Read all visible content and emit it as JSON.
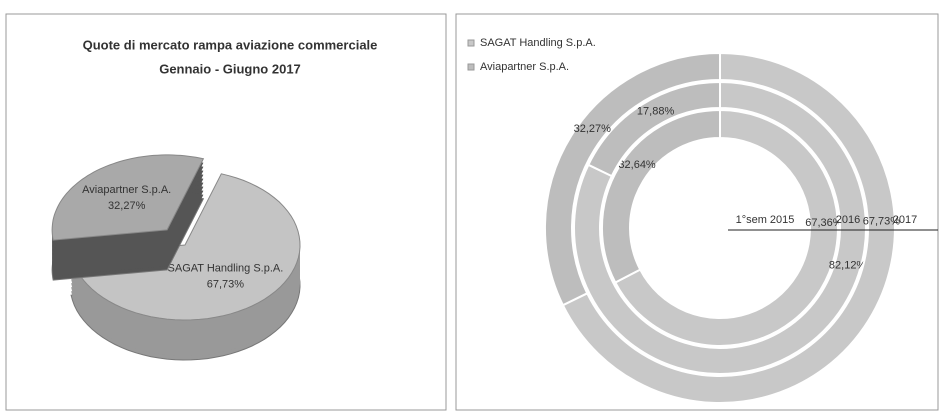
{
  "chart_data": [
    {
      "type": "pie3d",
      "title": "Quote di mercato rampa aviazione commerciale",
      "subtitle": "Gennaio - Giugno 2017",
      "categories": [
        "SAGAT Handling S.p.A.",
        "Aviapartner S.p.A."
      ],
      "values": [
        67.73,
        32.27
      ],
      "value_labels": [
        "67,73%",
        "32,27%"
      ],
      "colors": [
        "#c4c4c4",
        "#a9a9a9"
      ]
    },
    {
      "type": "doughnut",
      "categories": [
        "1°sem 2015",
        "2016",
        "2017"
      ],
      "series": [
        {
          "name": "SAGAT Handling S.p.A.",
          "color": "#c8c8c8",
          "values": [
            67.36,
            82.12,
            67.73
          ],
          "value_labels": [
            "67,36%",
            "82,12%",
            "67,73%"
          ]
        },
        {
          "name": "Aviapartner S.p.A.",
          "color": "#bdbdbd",
          "values": [
            32.64,
            17.88,
            32.27
          ],
          "value_labels": [
            "32,64%",
            "17,88%",
            "32,27%"
          ]
        }
      ]
    }
  ]
}
